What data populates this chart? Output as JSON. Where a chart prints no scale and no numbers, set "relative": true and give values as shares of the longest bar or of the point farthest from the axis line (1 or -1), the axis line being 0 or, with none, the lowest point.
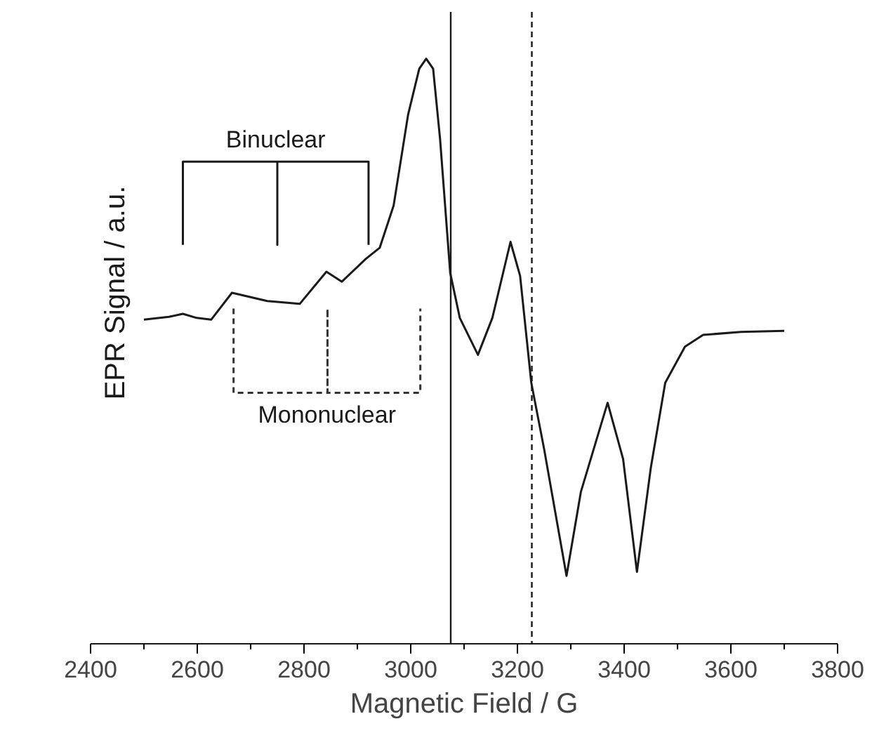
{
  "chart_data": {
    "type": "line",
    "relative": true,
    "xlabel": "Magnetic Field / G",
    "ylabel": "EPR Signal / a.u.",
    "xlim": [
      2400,
      3800
    ],
    "xticks": [
      2400,
      2600,
      2800,
      3000,
      3200,
      3400,
      3600,
      3800
    ],
    "grid": false,
    "marker": "none",
    "series": [
      {
        "color": "#1a1a1a",
        "x": [
          2500,
          2547,
          2573,
          2599,
          2626,
          2665,
          2731,
          2792,
          2842,
          2871,
          2916,
          2942,
          2968,
          2995,
          3016,
          3029,
          3042,
          3055,
          3074,
          3092,
          3126,
          3153,
          3187,
          3205,
          3226,
          3250,
          3292,
          3319,
          3369,
          3398,
          3424,
          3450,
          3477,
          3514,
          3548,
          3619,
          3700
        ],
        "values": [
          0.554,
          0.559,
          0.564,
          0.557,
          0.554,
          0.6,
          0.586,
          0.581,
          0.636,
          0.619,
          0.658,
          0.677,
          0.749,
          0.904,
          0.983,
          1.0,
          0.983,
          0.863,
          0.634,
          0.557,
          0.494,
          0.557,
          0.687,
          0.629,
          0.446,
          0.333,
          0.116,
          0.26,
          0.412,
          0.316,
          0.123,
          0.301,
          0.446,
          0.508,
          0.528,
          0.533,
          0.535
        ]
      },
      {
        "color": "#1a1a1a",
        "line_style": "solid",
        "x": [
          2573,
          2573,
          2750,
          2750,
          2750,
          2921,
          2921
        ],
        "values": [
          0.682,
          0.824,
          0.824,
          0.682,
          0.824,
          0.824,
          0.682
        ]
      },
      {
        "color": "#333333",
        "line_style": "dashed",
        "x": [
          2668,
          2668,
          2844,
          2844,
          2844,
          3018,
          3018
        ],
        "values": [
          0.573,
          0.429,
          0.429,
          0.573,
          0.429,
          0.429,
          0.573
        ]
      }
    ],
    "ref_lines": [
      {
        "axis": "x",
        "value": 3075,
        "line_style": "solid",
        "color": "#1a1a1a"
      },
      {
        "axis": "x",
        "value": 3227,
        "line_style": "dashed",
        "color": "#1a1a1a"
      }
    ],
    "annotations": [
      "Binuclear",
      "Mononuclear"
    ]
  }
}
